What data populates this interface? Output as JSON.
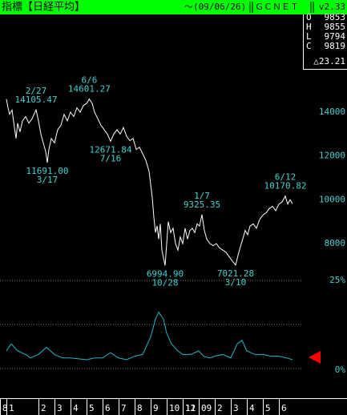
{
  "header": {
    "title": "指標【日経平均】",
    "date": "～(09/06/26)",
    "source": "ＧＣＮＥＴ",
    "version": "v2.33"
  },
  "quote": [
    {
      "label": "O",
      "value": 9853
    },
    {
      "label": "H",
      "value": 9855
    },
    {
      "label": "L",
      "value": 9794
    },
    {
      "label": "C",
      "value": 9819
    }
  ],
  "change": "△23.21",
  "chart_data": [
    {
      "type": "line",
      "x": [
        0,
        0.1,
        0.2,
        0.35,
        0.5,
        0.6,
        0.7,
        0.85,
        1.0,
        1.2,
        1.4,
        1.6,
        1.85,
        2.0,
        2.15,
        2.3,
        2.45,
        2.55,
        2.65,
        2.8,
        3.0,
        3.2,
        3.4,
        3.6,
        3.8,
        4.0,
        4.2,
        4.4,
        4.6,
        4.8,
        5.0,
        5.17,
        5.35,
        5.5,
        5.7,
        5.9,
        6.1,
        6.3,
        6.5,
        6.7,
        6.9,
        7.1,
        7.3,
        7.5,
        7.7,
        7.9,
        8.1,
        8.3,
        8.5,
        8.7,
        8.9,
        9.0,
        9.1,
        9.2,
        9.3,
        9.4,
        9.5,
        9.6,
        9.7,
        9.9,
        10.0,
        10.1,
        10.25,
        10.4,
        10.55,
        10.7,
        10.85,
        11.0,
        11.15,
        11.3,
        11.45,
        11.6,
        11.75,
        11.9,
        12.05,
        12.2,
        12.35,
        12.5,
        12.7,
        12.9,
        13.1,
        13.3,
        13.5,
        13.7,
        13.9,
        14.1,
        14.3,
        14.5,
        14.7,
        14.9,
        15.05,
        15.2,
        15.4,
        15.6,
        15.8,
        16.0,
        16.2,
        16.4,
        16.6,
        16.8,
        17.0,
        17.2,
        17.4,
        17.55,
        17.7,
        17.85
      ],
      "series": [
        {
          "color": "#ffffff",
          "values": [
            14600,
            14200,
            13900,
            14100,
            13300,
            12800,
            13500,
            13100,
            13600,
            13800,
            13500,
            13700,
            14105.47,
            13600,
            13000,
            12600,
            12200,
            11691,
            12300,
            12800,
            12600,
            13200,
            13400,
            13900,
            13600,
            14000,
            13800,
            14200,
            14000,
            14300,
            14400,
            14601.27,
            14400,
            14000,
            13700,
            13400,
            13200,
            13000,
            12671.84,
            13000,
            13200,
            13000,
            13300,
            12900,
            12700,
            12800,
            12300,
            12400,
            12100,
            11800,
            11300,
            10700,
            10100,
            9200,
            8500,
            8800,
            8200,
            8900,
            7700,
            6994.9,
            8000,
            9000,
            8500,
            8700,
            8000,
            7700,
            8300,
            8000,
            8700,
            8200,
            8600,
            8700,
            8500,
            8900,
            8800,
            9325.35,
            8600,
            8200,
            8000,
            7900,
            8000,
            7800,
            7700,
            7600,
            7400,
            7200,
            7021.28,
            7600,
            8100,
            8600,
            8400,
            8800,
            8900,
            8700,
            9100,
            9300,
            9400,
            9600,
            9700,
            9500,
            9800,
            9900,
            10170.82,
            9800,
            10000,
            9819
          ]
        }
      ],
      "xlim": [
        -0.4,
        18.5
      ],
      "ylim": [
        6500,
        15500
      ],
      "yticks": [
        14000,
        12000,
        10000,
        8000
      ],
      "grid": false,
      "annotations": [
        {
          "date": "2/27",
          "x": 1.85,
          "value": 14105.47
        },
        {
          "date": "3/17",
          "x": 2.55,
          "value": 11691,
          "value_label": "11691.00"
        },
        {
          "date": "6/6",
          "x": 5.17,
          "value": 14601.27
        },
        {
          "date": "7/16",
          "x": 6.5,
          "value": 12671.84
        },
        {
          "date": "10/28",
          "x": 9.9,
          "value": 6994.9,
          "value_label": "6994.90"
        },
        {
          "date": "1/7",
          "x": 12.2,
          "value": 9325.35
        },
        {
          "date": "3/10",
          "x": 14.3,
          "value": 7021.28
        },
        {
          "date": "6/12",
          "x": 17.4,
          "value": 10170.82
        }
      ]
    },
    {
      "type": "line",
      "x": [
        0,
        0.3,
        0.7,
        1.2,
        1.5,
        2,
        2.5,
        3,
        3.5,
        4,
        5,
        5.5,
        6,
        6.5,
        7,
        7.5,
        8,
        8.5,
        9,
        9.3,
        9.5,
        9.8,
        10,
        10.3,
        10.7,
        11,
        11.5,
        12,
        12.3,
        12.7,
        13,
        13.5,
        14,
        14.4,
        14.7,
        15,
        15.5,
        16,
        16.5,
        17,
        17.5,
        17.85
      ],
      "series": [
        {
          "color": "#20b8c8",
          "values": [
            5,
            7,
            5,
            4,
            3,
            4,
            6,
            4,
            3,
            3,
            2.5,
            3,
            3,
            4.5,
            3,
            2.5,
            3.5,
            4,
            9,
            14,
            16,
            14,
            10,
            7,
            5,
            4,
            4,
            5,
            3.5,
            3,
            3.5,
            4,
            3,
            7,
            8,
            5,
            4,
            4,
            3.5,
            3.5,
            3,
            2.5
          ]
        }
      ],
      "xlim": [
        -0.4,
        18.5
      ],
      "ylim": [
        0,
        25
      ],
      "yticks": [
        {
          "value": 25,
          "label": "25%"
        },
        {
          "value": 0,
          "label": "0%"
        }
      ],
      "grid": true,
      "xticks": [
        {
          "value": -0.4,
          "label": "8"
        },
        {
          "value": 0,
          "label": "1"
        },
        2,
        3,
        4,
        5,
        6,
        7,
        8,
        9,
        10,
        11,
        {
          "value": 11,
          "label": "12"
        },
        {
          "value": 12,
          "label": "09"
        },
        {
          "value": 13,
          "label": "2"
        },
        {
          "value": 14,
          "label": "3"
        },
        {
          "value": 15,
          "label": "4"
        },
        {
          "value": 16,
          "label": "5"
        },
        {
          "value": 17,
          "label": "6"
        }
      ]
    }
  ]
}
